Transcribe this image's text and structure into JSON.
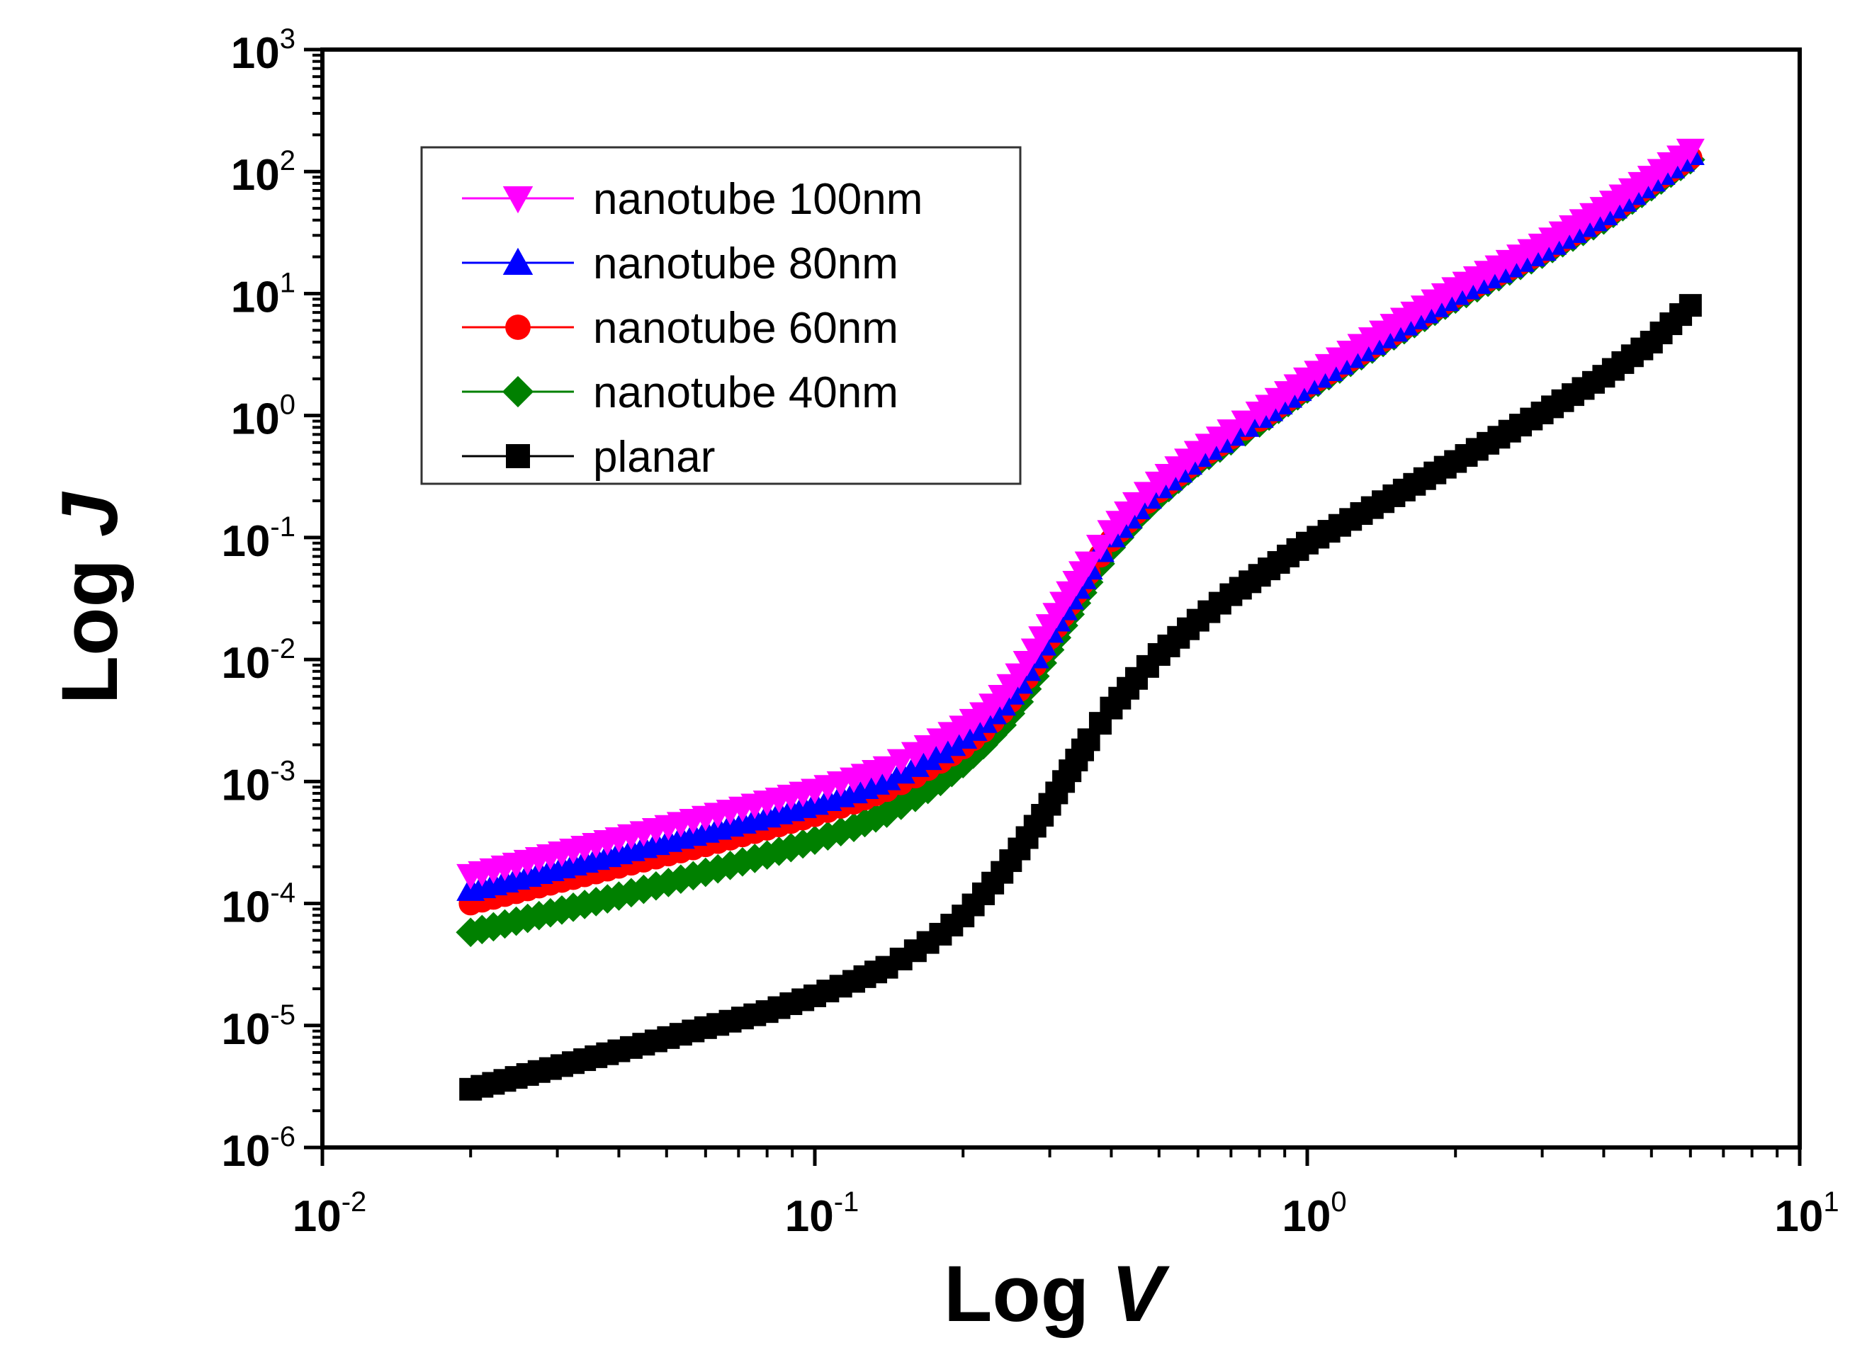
{
  "chart_data": {
    "type": "line",
    "xscale": "log",
    "yscale": "log",
    "xlim": [
      0.01,
      10
    ],
    "ylim": [
      1e-06,
      1000
    ],
    "xlabel": {
      "prefix": "Log ",
      "var": "V"
    },
    "ylabel": {
      "prefix": "Log ",
      "var": "J"
    },
    "x_ticks": [
      {
        "value": 0.01,
        "base": "10",
        "exp": "-2"
      },
      {
        "value": 0.1,
        "base": "10",
        "exp": "-1"
      },
      {
        "value": 1,
        "base": "10",
        "exp": "0"
      },
      {
        "value": 10,
        "base": "10",
        "exp": "1"
      }
    ],
    "y_ticks": [
      {
        "value": 1e-06,
        "base": "10",
        "exp": "-6"
      },
      {
        "value": 1e-05,
        "base": "10",
        "exp": "-5"
      },
      {
        "value": 0.0001,
        "base": "10",
        "exp": "-4"
      },
      {
        "value": 0.001,
        "base": "10",
        "exp": "-3"
      },
      {
        "value": 0.01,
        "base": "10",
        "exp": "-2"
      },
      {
        "value": 0.1,
        "base": "10",
        "exp": "-1"
      },
      {
        "value": 1,
        "base": "10",
        "exp": "0"
      },
      {
        "value": 10,
        "base": "10",
        "exp": "1"
      },
      {
        "value": 100,
        "base": "10",
        "exp": "2"
      },
      {
        "value": 1000,
        "base": "10",
        "exp": "3"
      }
    ],
    "grid": false,
    "legend_position": "top-left",
    "series": [
      {
        "name": "nanotube 100nm",
        "color": "#ff00ff",
        "marker": "triangle-down",
        "points": [
          [
            0.02,
            0.00017
          ],
          [
            0.04,
            0.00034
          ],
          [
            0.06,
            0.00051
          ],
          [
            0.08,
            0.00068
          ],
          [
            0.1,
            0.00085
          ],
          [
            0.12,
            0.00105
          ],
          [
            0.14,
            0.0013
          ],
          [
            0.16,
            0.0017
          ],
          [
            0.18,
            0.0022
          ],
          [
            0.2,
            0.0028
          ],
          [
            0.22,
            0.0036
          ],
          [
            0.24,
            0.005
          ],
          [
            0.26,
            0.0075
          ],
          [
            0.28,
            0.012
          ],
          [
            0.3,
            0.019
          ],
          [
            0.32,
            0.029
          ],
          [
            0.34,
            0.043
          ],
          [
            0.36,
            0.062
          ],
          [
            0.38,
            0.085
          ],
          [
            0.4,
            0.112
          ],
          [
            0.45,
            0.19
          ],
          [
            0.5,
            0.28
          ],
          [
            0.6,
            0.5
          ],
          [
            0.7,
            0.75
          ],
          [
            0.8,
            1.05
          ],
          [
            1.0,
            2.0
          ],
          [
            1.5,
            5.5
          ],
          [
            2.0,
            11
          ],
          [
            3.0,
            25
          ],
          [
            4.0,
            50
          ],
          [
            5.0,
            90
          ],
          [
            6.0,
            150
          ]
        ]
      },
      {
        "name": "nanotube 80nm",
        "color": "#0000ff",
        "marker": "triangle-up",
        "points": [
          [
            0.02,
            0.00013
          ],
          [
            0.04,
            0.00026
          ],
          [
            0.06,
            0.00039
          ],
          [
            0.08,
            0.00052
          ],
          [
            0.1,
            0.00066
          ],
          [
            0.12,
            0.00082
          ],
          [
            0.14,
            0.00105
          ],
          [
            0.16,
            0.00135
          ],
          [
            0.18,
            0.00175
          ],
          [
            0.2,
            0.0023
          ],
          [
            0.22,
            0.0031
          ],
          [
            0.24,
            0.0043
          ],
          [
            0.26,
            0.0065
          ],
          [
            0.28,
            0.0105
          ],
          [
            0.3,
            0.017
          ],
          [
            0.32,
            0.026
          ],
          [
            0.34,
            0.039
          ],
          [
            0.36,
            0.056
          ],
          [
            0.38,
            0.078
          ],
          [
            0.4,
            0.103
          ],
          [
            0.45,
            0.175
          ],
          [
            0.5,
            0.26
          ],
          [
            0.6,
            0.47
          ],
          [
            0.7,
            0.7
          ],
          [
            0.8,
            0.98
          ],
          [
            1.0,
            1.85
          ],
          [
            1.5,
            5.0
          ],
          [
            2.0,
            10
          ],
          [
            3.0,
            23
          ],
          [
            4.0,
            45
          ],
          [
            5.0,
            85
          ],
          [
            6.0,
            140
          ]
        ]
      },
      {
        "name": "nanotube 60nm",
        "color": "#ff0000",
        "marker": "circle",
        "points": [
          [
            0.02,
            0.0001
          ],
          [
            0.04,
            0.0002
          ],
          [
            0.06,
            0.0003
          ],
          [
            0.08,
            0.00041
          ],
          [
            0.1,
            0.00053
          ],
          [
            0.12,
            0.00067
          ],
          [
            0.14,
            0.00085
          ],
          [
            0.16,
            0.0011
          ],
          [
            0.18,
            0.00145
          ],
          [
            0.2,
            0.0019
          ],
          [
            0.22,
            0.0026
          ],
          [
            0.24,
            0.0037
          ],
          [
            0.26,
            0.0056
          ],
          [
            0.28,
            0.009
          ],
          [
            0.3,
            0.015
          ],
          [
            0.32,
            0.023
          ],
          [
            0.34,
            0.035
          ],
          [
            0.36,
            0.051
          ],
          [
            0.38,
            0.071
          ],
          [
            0.4,
            0.095
          ],
          [
            0.45,
            0.16
          ],
          [
            0.5,
            0.24
          ],
          [
            0.6,
            0.44
          ],
          [
            0.7,
            0.66
          ],
          [
            0.8,
            0.92
          ],
          [
            1.0,
            1.75
          ],
          [
            1.5,
            4.7
          ],
          [
            2.0,
            9.5
          ],
          [
            3.0,
            22
          ],
          [
            4.0,
            42
          ],
          [
            5.0,
            80
          ],
          [
            6.0,
            130
          ]
        ]
      },
      {
        "name": "nanotube 40nm",
        "color": "#008000",
        "marker": "diamond",
        "points": [
          [
            0.02,
            5.8e-05
          ],
          [
            0.04,
            0.000115
          ],
          [
            0.06,
            0.00018
          ],
          [
            0.08,
            0.00025
          ],
          [
            0.1,
            0.00033
          ],
          [
            0.12,
            0.00042
          ],
          [
            0.14,
            0.00055
          ],
          [
            0.16,
            0.00074
          ],
          [
            0.18,
            0.001
          ],
          [
            0.2,
            0.0014
          ],
          [
            0.22,
            0.002
          ],
          [
            0.24,
            0.0029
          ],
          [
            0.26,
            0.0045
          ],
          [
            0.28,
            0.0073
          ],
          [
            0.3,
            0.012
          ],
          [
            0.32,
            0.019
          ],
          [
            0.34,
            0.029
          ],
          [
            0.36,
            0.043
          ],
          [
            0.38,
            0.061
          ],
          [
            0.4,
            0.083
          ],
          [
            0.45,
            0.145
          ],
          [
            0.5,
            0.22
          ],
          [
            0.6,
            0.41
          ],
          [
            0.7,
            0.62
          ],
          [
            0.8,
            0.87
          ],
          [
            1.0,
            1.65
          ],
          [
            1.5,
            4.5
          ],
          [
            2.0,
            9.0
          ],
          [
            3.0,
            21
          ],
          [
            4.0,
            40
          ],
          [
            5.0,
            75
          ],
          [
            6.0,
            125
          ]
        ]
      },
      {
        "name": "planar",
        "color": "#000000",
        "marker": "square",
        "points": [
          [
            0.02,
            3e-06
          ],
          [
            0.04,
            6.2e-06
          ],
          [
            0.06,
            9.6e-06
          ],
          [
            0.08,
            1.3e-05
          ],
          [
            0.1,
            1.75e-05
          ],
          [
            0.12,
            2.3e-05
          ],
          [
            0.14,
            3e-05
          ],
          [
            0.16,
            4.1e-05
          ],
          [
            0.18,
            5.6e-05
          ],
          [
            0.2,
            7.9e-05
          ],
          [
            0.22,
            0.00012
          ],
          [
            0.24,
            0.00018
          ],
          [
            0.26,
            0.00028
          ],
          [
            0.28,
            0.00043
          ],
          [
            0.3,
            0.00065
          ],
          [
            0.32,
            0.001
          ],
          [
            0.34,
            0.0015
          ],
          [
            0.36,
            0.0022
          ],
          [
            0.38,
            0.003
          ],
          [
            0.4,
            0.004
          ],
          [
            0.45,
            0.007
          ],
          [
            0.5,
            0.011
          ],
          [
            0.6,
            0.021
          ],
          [
            0.7,
            0.034
          ],
          [
            0.8,
            0.049
          ],
          [
            1.0,
            0.09
          ],
          [
            1.5,
            0.22
          ],
          [
            2.0,
            0.42
          ],
          [
            3.0,
            1.05
          ],
          [
            4.0,
            2.1
          ],
          [
            5.0,
            4.0
          ],
          [
            6.0,
            8.0
          ]
        ]
      }
    ]
  }
}
